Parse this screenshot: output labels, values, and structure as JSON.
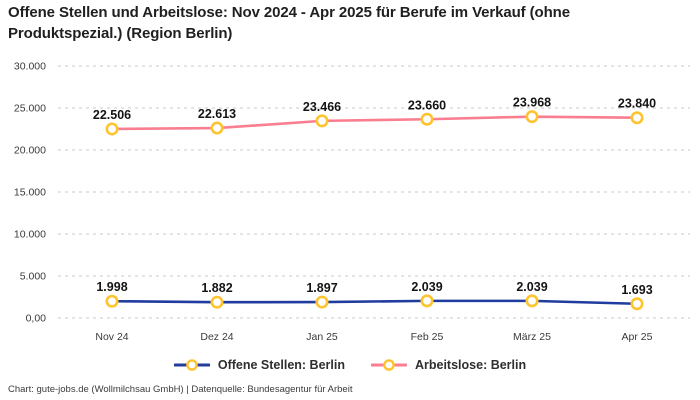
{
  "title": "Offene Stellen und Arbeitslose: Nov 2024 - Apr 2025 für Berufe im Verkauf (ohne Produktspezial.) (Region Berlin)",
  "footer": "Chart: gute-jobs.de (Wollmilchsau GmbH) | Datenquelle: Bundesagentur für Arbeit",
  "chart_data": {
    "type": "line",
    "categories": [
      "Nov 24",
      "Dez 24",
      "Jan 25",
      "Feb 25",
      "März 25",
      "Apr 25"
    ],
    "series": [
      {
        "name": "Offene Stellen: Berlin",
        "color": "#1F3C9E",
        "values": [
          1998,
          1882,
          1897,
          2039,
          2039,
          1693
        ],
        "labels": [
          "1.998",
          "1.882",
          "1.897",
          "2.039",
          "2.039",
          "1.693"
        ]
      },
      {
        "name": "Arbeitslose: Berlin",
        "color": "#F97E90",
        "values": [
          22506,
          22613,
          23466,
          23660,
          23968,
          23840
        ],
        "labels": [
          "22.506",
          "22.613",
          "23.466",
          "23.660",
          "23.968",
          "23.840"
        ]
      }
    ],
    "ylim": [
      0,
      30000
    ],
    "y_ticks": [
      {
        "value": 30000,
        "label": "30.000"
      },
      {
        "value": 25000,
        "label": "25.000"
      },
      {
        "value": 20000,
        "label": "20.000"
      },
      {
        "value": 15000,
        "label": "15.000"
      },
      {
        "value": 10000,
        "label": "10.000"
      },
      {
        "value": 5000,
        "label": "5.000"
      },
      {
        "value": 0,
        "label": "0,00"
      }
    ],
    "grid": "horizontal-dashed",
    "gridline_color": "#c9c9c9",
    "legend_position": "bottom",
    "marker": {
      "shape": "circle",
      "fill": "#ffffff",
      "stroke": "#FFC32E"
    }
  }
}
